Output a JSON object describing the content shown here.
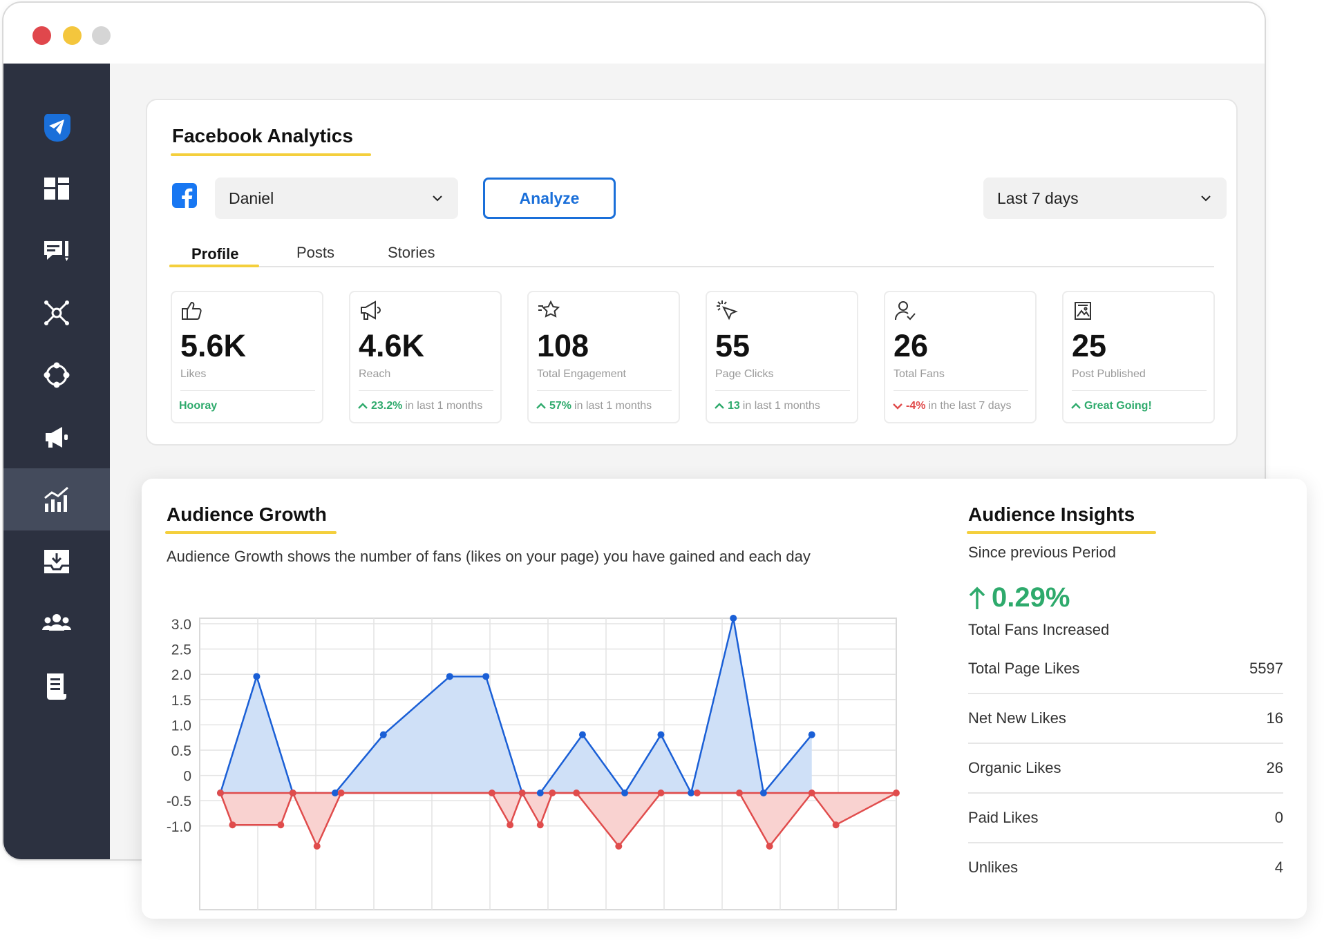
{
  "header": {
    "title": "Facebook Analytics"
  },
  "controls": {
    "account": "Daniel",
    "analyze_label": "Analyze",
    "range": "Last 7 days"
  },
  "tabs": [
    "Profile",
    "Posts",
    "Stories"
  ],
  "stats": [
    {
      "icon": "thumbs-up-icon",
      "value": "5.6K",
      "label": "Likes",
      "trend_text": "Hooray",
      "trend_pct": "",
      "trend_dir": "none"
    },
    {
      "icon": "megaphone-icon",
      "value": "4.6K",
      "label": "Reach",
      "trend_pct": "23.2%",
      "trend_text": "in last 1 months",
      "trend_dir": "up"
    },
    {
      "icon": "star-icon",
      "value": "108",
      "label": "Total Engagement",
      "trend_pct": "57%",
      "trend_text": "in last 1 months",
      "trend_dir": "up"
    },
    {
      "icon": "cursor-click-icon",
      "value": "55",
      "label": "Page Clicks",
      "trend_pct": "13",
      "trend_text": "in last 1 months",
      "trend_dir": "up"
    },
    {
      "icon": "user-check-icon",
      "value": "26",
      "label": "Total Fans",
      "trend_pct": "-4%",
      "trend_text": "in the last 7 days",
      "trend_dir": "down"
    },
    {
      "icon": "image-icon",
      "value": "25",
      "label": "Post Published",
      "trend_pct": "",
      "trend_text": "Great Going!",
      "trend_dir": "up-text"
    }
  ],
  "growth": {
    "title": "Audience Growth",
    "description": "Audience Growth shows the number of fans (likes on your page) you have gained and each day"
  },
  "insights": {
    "title": "Audience Insights",
    "subtitle": "Since previous Period",
    "change": "0.29%",
    "change_label": "Total Fans Increased",
    "rows": [
      {
        "label": "Total Page Likes",
        "value": "5597"
      },
      {
        "label": "Net New Likes",
        "value": "16"
      },
      {
        "label": "Organic Likes",
        "value": "26"
      },
      {
        "label": "Paid Likes",
        "value": "0"
      },
      {
        "label": "Unlikes",
        "value": "4"
      }
    ]
  },
  "colors": {
    "accent": "#1a6fd9",
    "underline": "#f4cf3c",
    "positive": "#2eaa6c",
    "negative": "#e04c4c",
    "sidebar": "#2c3140"
  },
  "chart_data": {
    "type": "area",
    "ylim": [
      -1.0,
      3.0
    ],
    "yticks": [
      "3.0",
      "2.5",
      "2.0",
      "1.5",
      "1.0",
      "0.5",
      "0",
      "-0.5",
      "-1.0"
    ],
    "series": [
      {
        "color": "#1a5fd6",
        "fill": "#cfe0f7",
        "x": [
          0,
          0.6,
          1.2,
          1.9,
          2.7,
          3.8,
          4.4,
          5.0,
          5.3,
          6.0,
          6.7,
          7.3,
          7.8,
          8.5,
          9.0,
          9.8
        ],
        "values": [
          0,
          2.0,
          0,
          0,
          1.0,
          2.0,
          2.0,
          0,
          0,
          1.0,
          0,
          1.0,
          0,
          3.0,
          0,
          1.0
        ]
      },
      {
        "color": "#e04c4c",
        "fill": "#f9d2d0",
        "x": [
          0,
          0.2,
          1.0,
          1.2,
          1.6,
          2.0,
          4.5,
          4.8,
          5.0,
          5.3,
          5.5,
          5.9,
          6.6,
          7.3,
          7.9,
          8.6,
          9.1,
          9.8,
          10.2,
          11.2
        ],
        "values": [
          0,
          -0.6,
          -0.6,
          0,
          -1.0,
          0,
          0,
          -0.6,
          0,
          -0.6,
          0,
          0,
          -1.0,
          0,
          0,
          0,
          -1.0,
          0,
          -0.6,
          0
        ]
      }
    ]
  }
}
